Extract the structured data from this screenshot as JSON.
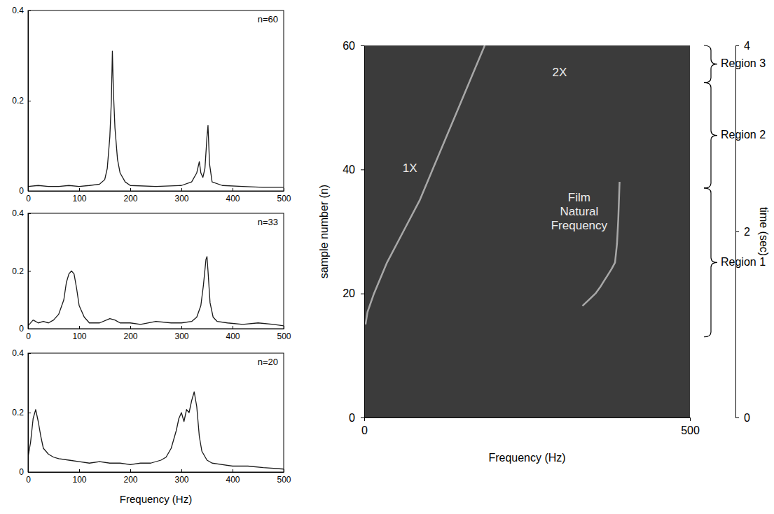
{
  "chart_data": [
    {
      "type": "line",
      "title": "n=60",
      "xlim": [
        0,
        500
      ],
      "xticks": [
        0,
        100,
        200,
        300,
        400,
        500
      ],
      "ylim": [
        0,
        0.4
      ],
      "yticks": [
        0,
        0.2,
        0.4
      ],
      "series": [
        {
          "color": "#1a1a1a",
          "x": [
            0,
            20,
            40,
            60,
            80,
            100,
            120,
            140,
            150,
            155,
            160,
            163,
            165,
            167,
            170,
            175,
            180,
            190,
            200,
            250,
            300,
            320,
            330,
            335,
            338,
            342,
            346,
            350,
            352,
            355,
            360,
            380,
            420,
            460,
            500
          ],
          "values": [
            0.01,
            0.012,
            0.01,
            0.01,
            0.012,
            0.01,
            0.012,
            0.015,
            0.025,
            0.05,
            0.12,
            0.2,
            0.31,
            0.22,
            0.14,
            0.07,
            0.04,
            0.02,
            0.012,
            0.01,
            0.012,
            0.02,
            0.04,
            0.065,
            0.04,
            0.03,
            0.05,
            0.12,
            0.145,
            0.06,
            0.02,
            0.012,
            0.01,
            0.008,
            0.008
          ]
        }
      ]
    },
    {
      "type": "line",
      "title": "n=33",
      "xlim": [
        0,
        500
      ],
      "xticks": [
        0,
        100,
        200,
        300,
        400,
        500
      ],
      "ylim": [
        0,
        0.4
      ],
      "yticks": [
        0,
        0.2,
        0.4
      ],
      "series": [
        {
          "color": "#1a1a1a",
          "x": [
            0,
            10,
            20,
            30,
            40,
            50,
            60,
            70,
            75,
            80,
            85,
            90,
            95,
            100,
            110,
            120,
            140,
            160,
            170,
            180,
            200,
            220,
            250,
            280,
            300,
            320,
            330,
            338,
            343,
            348,
            350,
            352,
            356,
            362,
            370,
            390,
            420,
            450,
            480,
            500
          ],
          "values": [
            0.01,
            0.03,
            0.02,
            0.025,
            0.02,
            0.03,
            0.05,
            0.1,
            0.16,
            0.19,
            0.2,
            0.19,
            0.14,
            0.08,
            0.04,
            0.02,
            0.02,
            0.035,
            0.03,
            0.02,
            0.02,
            0.015,
            0.025,
            0.02,
            0.02,
            0.025,
            0.04,
            0.08,
            0.15,
            0.24,
            0.25,
            0.2,
            0.09,
            0.04,
            0.025,
            0.02,
            0.015,
            0.02,
            0.015,
            0.01
          ]
        }
      ]
    },
    {
      "type": "line",
      "title": "n=20",
      "x_label": "Frequency (Hz)",
      "xlim": [
        0,
        500
      ],
      "xticks": [
        0,
        100,
        200,
        300,
        400,
        500
      ],
      "ylim": [
        0,
        0.4
      ],
      "yticks": [
        0,
        0.2,
        0.4
      ],
      "series": [
        {
          "color": "#1a1a1a",
          "x": [
            0,
            5,
            10,
            15,
            20,
            25,
            30,
            40,
            50,
            60,
            80,
            100,
            120,
            140,
            160,
            180,
            200,
            220,
            240,
            260,
            270,
            280,
            290,
            295,
            300,
            305,
            310,
            315,
            320,
            325,
            330,
            335,
            340,
            350,
            360,
            380,
            400,
            430,
            460,
            500
          ],
          "values": [
            0.05,
            0.1,
            0.18,
            0.21,
            0.17,
            0.12,
            0.08,
            0.06,
            0.05,
            0.045,
            0.04,
            0.035,
            0.03,
            0.035,
            0.03,
            0.03,
            0.025,
            0.03,
            0.03,
            0.04,
            0.05,
            0.08,
            0.14,
            0.18,
            0.2,
            0.17,
            0.21,
            0.2,
            0.24,
            0.27,
            0.22,
            0.12,
            0.07,
            0.04,
            0.03,
            0.025,
            0.02,
            0.02,
            0.015,
            0.01
          ]
        }
      ]
    },
    {
      "type": "spectrogram",
      "x_label": "Frequency (Hz)",
      "y_label": "sample number (n)",
      "y2_label": "time (sec)",
      "xlim": [
        0,
        500
      ],
      "xticks": [
        0,
        500
      ],
      "ylim": [
        0,
        60
      ],
      "yticks": [
        0,
        20,
        40,
        60
      ],
      "y2lim": [
        0,
        4
      ],
      "y2ticks": [
        0,
        2,
        4
      ],
      "series": [
        {
          "color": "#a8a8a8",
          "x": [
            2,
            5,
            15,
            35,
            60,
            85,
            105,
            125,
            145,
            165,
            185
          ],
          "values": [
            15,
            17,
            20,
            25,
            30,
            35,
            40,
            45,
            50,
            55,
            60
          ]
        },
        {
          "color": "#a8a8a8",
          "x": [
            335,
            345,
            355,
            362,
            368,
            374,
            380,
            385,
            388,
            390,
            392
          ],
          "values": [
            18,
            19,
            20,
            21,
            22,
            23,
            24,
            25,
            28,
            32,
            38
          ]
        }
      ],
      "annotations": [
        {
          "text": "1X",
          "x": 70,
          "y": 40
        },
        {
          "text": "2X",
          "x": 300,
          "y": 55.5
        },
        {
          "text": "Film Natural Frequency",
          "x": 330,
          "y": 33
        }
      ],
      "regions": [
        {
          "label": "Region 1",
          "range": [
            13,
            37
          ]
        },
        {
          "label": "Region 2",
          "range": [
            37,
            54
          ]
        },
        {
          "label": "Region 3",
          "range": [
            54,
            60
          ]
        }
      ]
    }
  ]
}
